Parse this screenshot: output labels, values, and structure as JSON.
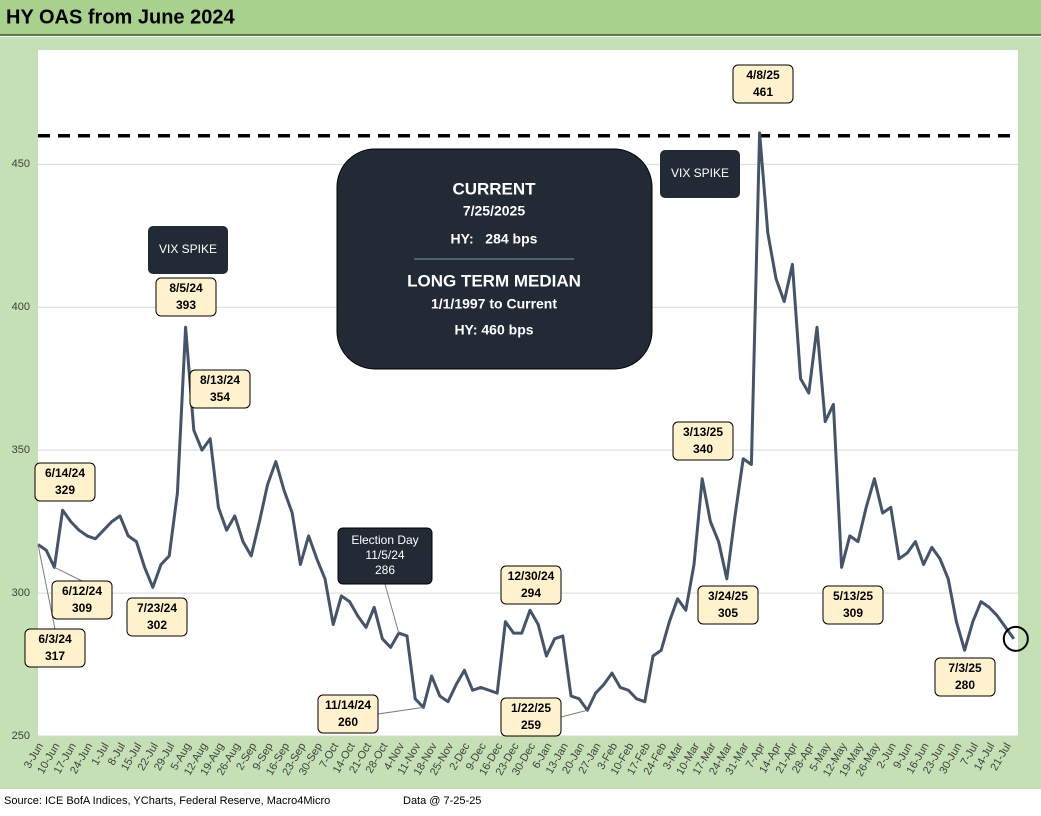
{
  "chart_data": {
    "type": "line",
    "title": "HY OAS from June 2024",
    "categories": [
      "3-Jun",
      null,
      "10-Jun",
      null,
      "17-Jun",
      null,
      "24-Jun",
      null,
      "1-Jul",
      null,
      "8-Jul",
      null,
      "15-Jul",
      null,
      "22-Jul",
      null,
      "29-Jul",
      null,
      "5-Aug",
      null,
      "12-Aug",
      null,
      "19-Aug",
      null,
      "26-Aug",
      null,
      "2-Sep",
      null,
      "9-Sep",
      null,
      "16-Sep",
      null,
      "23-Sep",
      null,
      "30-Sep",
      null,
      "7-Oct",
      null,
      "14-Oct",
      null,
      "21-Oct",
      null,
      "28-Oct",
      null,
      "4-Nov",
      null,
      "11-Nov",
      null,
      "18-Nov",
      null,
      "25-Nov",
      null,
      "2-Dec",
      null,
      "9-Dec",
      null,
      "16-Dec",
      null,
      "23-Dec",
      null,
      "30-Dec",
      null,
      "6-Jan",
      null,
      "13-Jan",
      null,
      "20-Jan",
      null,
      "27-Jan",
      null,
      "3-Feb",
      null,
      "10-Feb",
      null,
      "17-Feb",
      null,
      "24-Feb",
      null,
      "3-Mar",
      null,
      "10-Mar",
      null,
      "17-Mar",
      null,
      "24-Mar",
      null,
      "31-Mar",
      null,
      "7-Apr",
      null,
      "14-Apr",
      null,
      "21-Apr",
      null,
      "28-Apr",
      null,
      "5-May",
      null,
      "12-May",
      null,
      "19-May",
      null,
      "26-May",
      null,
      "2-Jun",
      null,
      "9-Jun",
      null,
      "16-Jun",
      null,
      "23-Jun",
      null,
      "30-Jun",
      null,
      "7-Jul",
      null,
      "14-Jul",
      null,
      "21-Jul",
      null
    ],
    "values": [
      317,
      315,
      309,
      329,
      325,
      322,
      320,
      319,
      322,
      325,
      327,
      320,
      318,
      309,
      302,
      310,
      313,
      335,
      393,
      357,
      350,
      354,
      330,
      322,
      327,
      318,
      313,
      325,
      338,
      346,
      336,
      328,
      310,
      320,
      312,
      305,
      289,
      299,
      297,
      292,
      288,
      295,
      284,
      281,
      286,
      285,
      263,
      260,
      271,
      264,
      262,
      268,
      273,
      266,
      267,
      266,
      265,
      290,
      286,
      286,
      294,
      289,
      278,
      284,
      285,
      264,
      263,
      259,
      265,
      268,
      272,
      267,
      266,
      263,
      262,
      278,
      280,
      290,
      298,
      294,
      310,
      340,
      325,
      318,
      305,
      327,
      347,
      345,
      461,
      426,
      410,
      402,
      415,
      375,
      370,
      393,
      360,
      366,
      309,
      320,
      318,
      330,
      340,
      328,
      330,
      312,
      314,
      318,
      310,
      316,
      312,
      305,
      290,
      280,
      290,
      297,
      295,
      292,
      288,
      284
    ],
    "color": "#44546a",
    "ylim": [
      250,
      490
    ],
    "yticks": [
      250,
      300,
      350,
      400,
      450
    ],
    "grid": true,
    "reference_line": 460,
    "annotations": [
      {
        "label": "6/3/24",
        "value": 317
      },
      {
        "label": "6/12/24",
        "value": 309
      },
      {
        "label": "6/14/24",
        "value": 329
      },
      {
        "label": "7/23/24",
        "value": 302
      },
      {
        "label": "8/5/24",
        "value": 393
      },
      {
        "label": "8/13/24",
        "value": 354
      },
      {
        "note": "Election Day",
        "label": "11/5/24",
        "value": 286
      },
      {
        "label": "11/14/24",
        "value": 260
      },
      {
        "label": "12/30/24",
        "value": 294
      },
      {
        "label": "1/22/25",
        "value": 259
      },
      {
        "label": "3/13/25",
        "value": 340
      },
      {
        "label": "3/24/25",
        "value": 305
      },
      {
        "label": "4/8/25",
        "value": 461
      },
      {
        "label": "5/13/25",
        "value": 309
      },
      {
        "label": "7/3/25",
        "value": 280
      }
    ],
    "vix_labels": [
      "VIX SPIKE",
      "VIX SPIKE"
    ],
    "info_box": {
      "current_title": "CURRENT",
      "current_date": "7/25/2025",
      "current_value": "HY:   284 bps",
      "median_title": "LONG TERM MEDIAN",
      "median_period": "1/1/1997 to Current",
      "median_value": "HY: 460 bps"
    },
    "source": "Source: ICE BofA Indices, YCharts, Federal Reserve, Macro4Micro",
    "data_date": "Data @ 7-25-25"
  }
}
